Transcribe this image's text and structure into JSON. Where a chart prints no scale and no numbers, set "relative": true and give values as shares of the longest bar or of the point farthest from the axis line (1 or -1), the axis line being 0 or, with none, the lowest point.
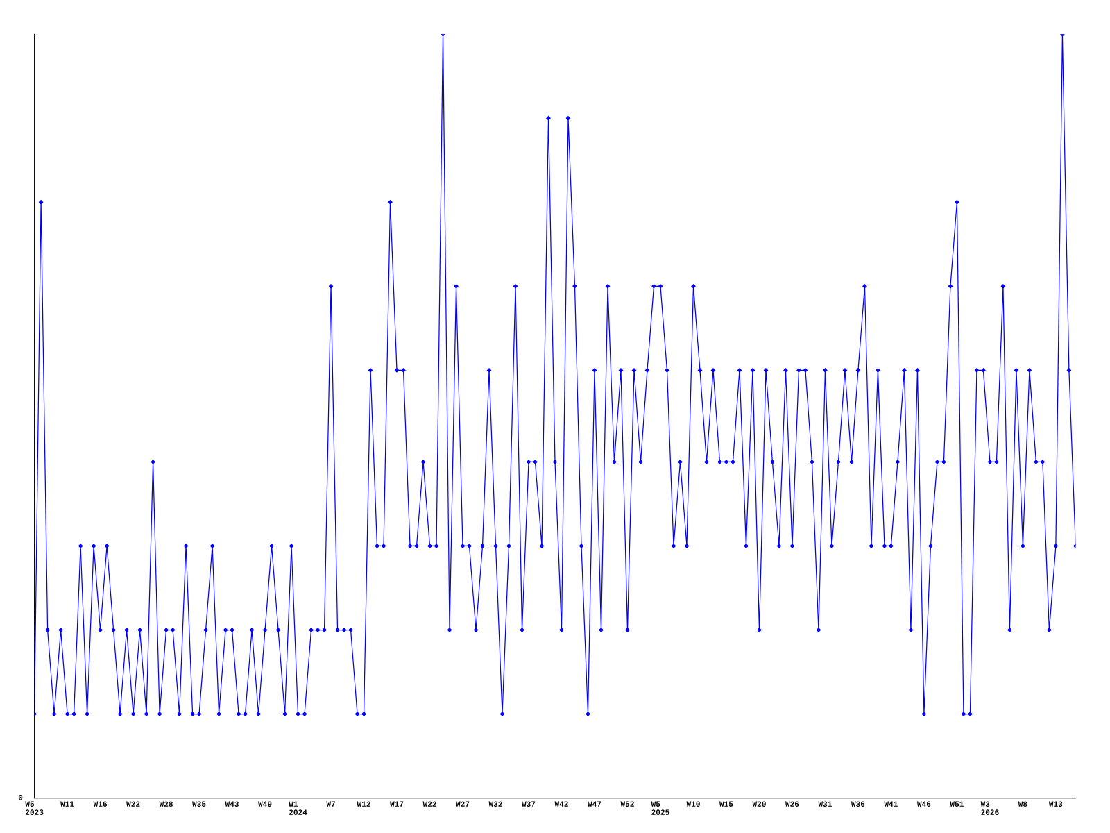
{
  "chart_data": {
    "type": "line",
    "relative": true,
    "marker": "diamond",
    "line_style": "solid",
    "grid": false,
    "annotations": [
      "0"
    ],
    "categories": [
      "W5\n2023",
      null,
      null,
      null,
      null,
      "W11",
      null,
      null,
      null,
      null,
      "W16",
      null,
      null,
      null,
      null,
      "W22",
      null,
      null,
      null,
      null,
      "W28",
      null,
      null,
      null,
      null,
      "W35",
      null,
      null,
      null,
      null,
      "W43",
      null,
      null,
      null,
      null,
      "W49",
      null,
      null,
      null,
      null,
      "W1\n2024",
      null,
      null,
      null,
      null,
      "W7",
      null,
      null,
      null,
      null,
      "W12",
      null,
      null,
      null,
      null,
      "W17",
      null,
      null,
      null,
      null,
      "W22",
      null,
      null,
      null,
      null,
      "W27",
      null,
      null,
      null,
      null,
      "W32",
      null,
      null,
      null,
      null,
      "W37",
      null,
      null,
      null,
      null,
      "W42",
      null,
      null,
      null,
      null,
      "W47",
      null,
      null,
      null,
      null,
      "W52",
      null,
      null,
      null,
      null,
      "W5\n2025",
      null,
      null,
      null,
      null,
      "W10",
      null,
      null,
      null,
      null,
      "W15",
      null,
      null,
      null,
      null,
      "W20",
      null,
      null,
      null,
      null,
      "W26",
      null,
      null,
      null,
      null,
      "W31",
      null,
      null,
      null,
      null,
      "W36",
      null,
      null,
      null,
      null,
      "W41",
      null,
      null,
      null,
      null,
      "W46",
      null,
      null,
      null,
      null,
      "W51",
      null,
      null,
      null,
      null,
      "W3\n2026",
      null,
      null,
      null,
      null,
      "W8",
      null,
      null,
      null,
      null,
      "W13",
      null,
      null,
      null
    ],
    "series": [
      {
        "color": "#0000ff",
        "values": [
          0.11,
          0.78,
          0.22,
          0.11,
          0.22,
          0.11,
          0.11,
          0.33,
          0.11,
          0.33,
          0.22,
          0.33,
          0.22,
          0.11,
          0.22,
          0.11,
          0.22,
          0.11,
          0.44,
          0.11,
          0.22,
          0.22,
          0.11,
          0.33,
          0.11,
          0.11,
          0.22,
          0.33,
          0.11,
          0.22,
          0.22,
          0.11,
          0.11,
          0.22,
          0.11,
          0.22,
          0.33,
          0.22,
          0.11,
          0.33,
          0.11,
          0.11,
          0.22,
          0.22,
          0.22,
          0.67,
          0.22,
          0.22,
          0.22,
          0.11,
          0.11,
          0.56,
          0.33,
          0.33,
          0.78,
          0.56,
          0.56,
          0.33,
          0.33,
          0.44,
          0.33,
          0.33,
          1,
          0.22,
          0.67,
          0.33,
          0.33,
          0.22,
          0.33,
          0.56,
          0.33,
          0.11,
          0.33,
          0.67,
          0.22,
          0.44,
          0.44,
          0.33,
          0.89,
          0.44,
          0.22,
          0.89,
          0.67,
          0.33,
          0.11,
          0.56,
          0.22,
          0.67,
          0.44,
          0.56,
          0.22,
          0.56,
          0.44,
          0.56,
          0.67,
          0.67,
          0.56,
          0.33,
          0.44,
          0.33,
          0.67,
          0.56,
          0.44,
          0.56,
          0.44,
          0.44,
          0.44,
          0.56,
          0.33,
          0.56,
          0.22,
          0.56,
          0.44,
          0.33,
          0.56,
          0.33,
          0.56,
          0.56,
          0.44,
          0.22,
          0.56,
          0.33,
          0.44,
          0.56,
          0.44,
          0.56,
          0.67,
          0.33,
          0.56,
          0.33,
          0.33,
          0.44,
          0.56,
          0.22,
          0.56,
          0.11,
          0.33,
          0.44,
          0.44,
          0.67,
          0.78,
          0.11,
          0.11,
          0.56,
          0.56,
          0.44,
          0.44,
          0.67,
          0.22,
          0.56,
          0.33,
          0.56,
          0.44,
          0.44,
          0.22,
          0.33,
          1,
          0.56,
          0.33
        ]
      }
    ]
  }
}
